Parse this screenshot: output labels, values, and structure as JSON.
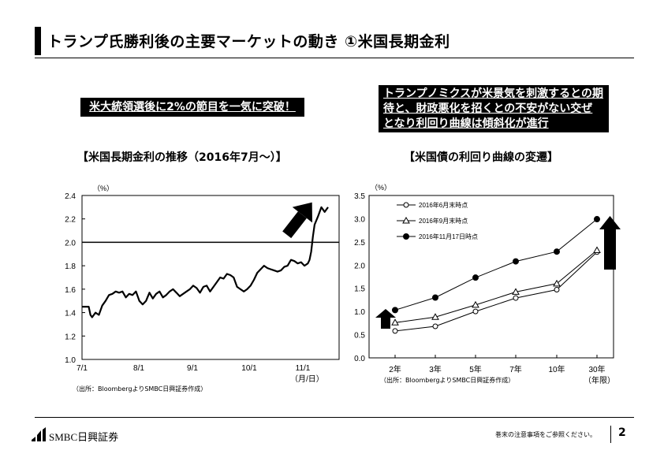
{
  "header": {
    "title": "トランプ氏勝利後の主要マーケットの動き ①米国長期金利"
  },
  "callouts": {
    "left": "米大統領選後に2%の節目を一気に突破！",
    "right_lines": [
      "トランプノミクスが米景気を刺激するとの期",
      "待と、財政悪化を招くとの不安がない交ぜ",
      "となり利回り曲線は傾斜化が進行"
    ]
  },
  "left_chart": {
    "title": "【米国長期金利の推移（2016年7月～）】",
    "unit_label": "（%）",
    "x_unit_label": "（月/日）",
    "source": "（出所：BloombergよりSMBC日興証券作成）"
  },
  "right_chart": {
    "title": "【米国債の利回り曲線の変遷】",
    "unit_label": "（%）",
    "x_unit_label": "（年限）",
    "source": "（出所：BloombergよりSMBC日興証券作成）"
  },
  "footer": {
    "logo_text": "SMBC日興証券",
    "note": "巻末の注意事項をご参照ください。",
    "page_number": "2"
  },
  "chart_data": [
    {
      "type": "line",
      "title": "【米国長期金利の推移（2016年7月～）】",
      "ylabel": "（%）",
      "xlabel": "（月/日）",
      "ylim": [
        1.0,
        2.4
      ],
      "yticks": [
        "1.0",
        "1.2",
        "1.4",
        "1.6",
        "1.8",
        "2.0",
        "2.2",
        "2.4"
      ],
      "xticks": [
        "7/1",
        "8/1",
        "9/1",
        "10/1",
        "11/1"
      ],
      "reference_line": 2.0,
      "annotation": "up-arrow",
      "grid": false,
      "series": [
        {
          "x": [
            0,
            2,
            4,
            5,
            6,
            8,
            10,
            12,
            14,
            16,
            18,
            20,
            22,
            24,
            26,
            28,
            30,
            32,
            34,
            36,
            38,
            40,
            42,
            44,
            46,
            48,
            50,
            52,
            54,
            56,
            58,
            60,
            62,
            64,
            66,
            68,
            70,
            72,
            74,
            76,
            78,
            80,
            82,
            84,
            86,
            88,
            90,
            92,
            94,
            96,
            98,
            100,
            102,
            104,
            106,
            108,
            110,
            112,
            114,
            116,
            118,
            120,
            122,
            124,
            126,
            128,
            130,
            132,
            134,
            135,
            136,
            137,
            138,
            140,
            142,
            144,
            146
          ],
          "values": [
            1.45,
            1.45,
            1.45,
            1.38,
            1.36,
            1.4,
            1.38,
            1.46,
            1.5,
            1.55,
            1.56,
            1.58,
            1.57,
            1.58,
            1.53,
            1.56,
            1.55,
            1.58,
            1.5,
            1.47,
            1.5,
            1.57,
            1.52,
            1.56,
            1.58,
            1.53,
            1.55,
            1.58,
            1.6,
            1.57,
            1.54,
            1.56,
            1.58,
            1.6,
            1.63,
            1.61,
            1.57,
            1.62,
            1.63,
            1.58,
            1.62,
            1.66,
            1.7,
            1.69,
            1.73,
            1.72,
            1.7,
            1.62,
            1.6,
            1.58,
            1.6,
            1.63,
            1.68,
            1.74,
            1.77,
            1.8,
            1.78,
            1.77,
            1.76,
            1.75,
            1.76,
            1.79,
            1.8,
            1.85,
            1.84,
            1.82,
            1.83,
            1.8,
            1.82,
            1.85,
            1.92,
            2.05,
            2.15,
            2.22,
            2.3,
            2.26,
            2.3
          ]
        }
      ]
    },
    {
      "type": "line",
      "title": "【米国債の利回り曲線の変遷】",
      "ylabel": "（%）",
      "xlabel": "（年限）",
      "categories": [
        "2年",
        "3年",
        "5年",
        "7年",
        "10年",
        "30年"
      ],
      "ylim": [
        0.0,
        3.5
      ],
      "yticks": [
        "0.0",
        "0.5",
        "1.0",
        "1.5",
        "2.0",
        "2.5",
        "3.0",
        "3.5"
      ],
      "legend_position": "top-left",
      "annotation": "up-arrows",
      "grid": false,
      "series": [
        {
          "name": "2016年6月末時点",
          "marker": "circle-open",
          "values": [
            0.58,
            0.68,
            1.0,
            1.29,
            1.47,
            2.28
          ]
        },
        {
          "name": "2016年9月末時点",
          "marker": "triangle-open",
          "values": [
            0.76,
            0.88,
            1.14,
            1.42,
            1.6,
            2.32
          ]
        },
        {
          "name": "2016年11月17日時点",
          "marker": "circle-filled",
          "values": [
            1.03,
            1.3,
            1.73,
            2.08,
            2.29,
            2.99
          ]
        }
      ]
    }
  ]
}
